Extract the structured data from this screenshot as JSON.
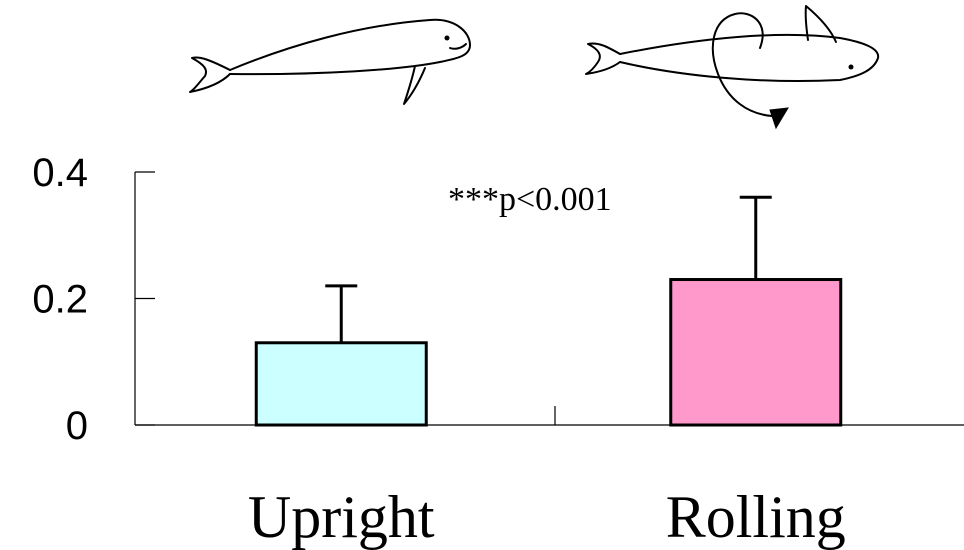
{
  "chart_data": {
    "type": "bar",
    "title": "",
    "xlabel": "",
    "ylabel": "",
    "categories": [
      "Upright",
      "Rolling"
    ],
    "values": [
      0.13,
      0.23
    ],
    "errors": [
      0.09,
      0.13
    ],
    "ylim": [
      0,
      0.4
    ],
    "yticks": [
      0,
      0.2,
      0.4
    ],
    "ytick_labels": [
      "0",
      "0.2",
      "0.4"
    ],
    "grid": false,
    "legend": "none",
    "colors": [
      "#ccffff",
      "#ff99cc"
    ],
    "annotation": "***p<0.001",
    "illustrations": [
      "upright-whale-icon",
      "rolling-whale-icon"
    ]
  }
}
